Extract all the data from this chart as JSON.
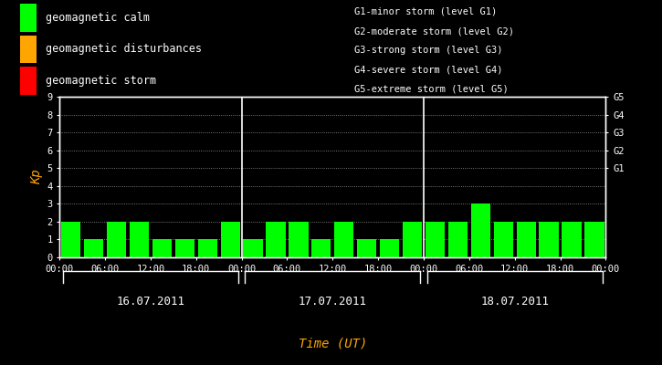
{
  "background_color": "#000000",
  "plot_bg_color": "#000000",
  "bar_color_calm": "#00ff00",
  "bar_color_disturbance": "#ffa500",
  "bar_color_storm": "#ff0000",
  "text_color": "#ffffff",
  "axis_color": "#ffffff",
  "xlabel_color": "#ffa500",
  "ylabel_color": "#ffa500",
  "grid_color": "#ffffff",
  "xlabel": "Time (UT)",
  "ylabel": "Kp",
  "ylim": [
    0,
    9
  ],
  "yticks": [
    0,
    1,
    2,
    3,
    4,
    5,
    6,
    7,
    8,
    9
  ],
  "days": [
    "16.07.2011",
    "17.07.2011",
    "18.07.2011"
  ],
  "kp_values": [
    [
      2,
      1,
      2,
      2,
      1,
      1,
      1,
      2
    ],
    [
      1,
      2,
      2,
      1,
      2,
      1,
      1,
      2
    ],
    [
      2,
      2,
      3,
      2,
      2,
      2,
      2,
      2
    ]
  ],
  "legend_items": [
    {
      "label": "geomagnetic calm",
      "color": "#00ff00"
    },
    {
      "label": "geomagnetic disturbances",
      "color": "#ffa500"
    },
    {
      "label": "geomagnetic storm",
      "color": "#ff0000"
    }
  ],
  "right_labels": [
    {
      "y": 5.0,
      "text": "G1"
    },
    {
      "y": 6.0,
      "text": "G2"
    },
    {
      "y": 7.0,
      "text": "G3"
    },
    {
      "y": 8.0,
      "text": "G4"
    },
    {
      "y": 9.0,
      "text": "G5"
    }
  ],
  "storm_annotations": [
    "G1-minor storm (level G1)",
    "G2-moderate storm (level G2)",
    "G3-strong storm (level G3)",
    "G4-severe storm (level G4)",
    "G5-extreme storm (level G5)"
  ],
  "xtick_labels": [
    "00:00",
    "06:00",
    "12:00",
    "18:00",
    "00:00",
    "06:00",
    "12:00",
    "18:00",
    "00:00",
    "06:00",
    "12:00",
    "18:00",
    "00:00"
  ],
  "font_size_tick": 7.5,
  "font_size_label": 9,
  "font_size_legend": 8.5,
  "font_size_annotation": 7.5,
  "font_size_right_label": 7.5,
  "font_size_ylabel": 10,
  "font_size_xlabel": 10,
  "bar_width": 0.85
}
